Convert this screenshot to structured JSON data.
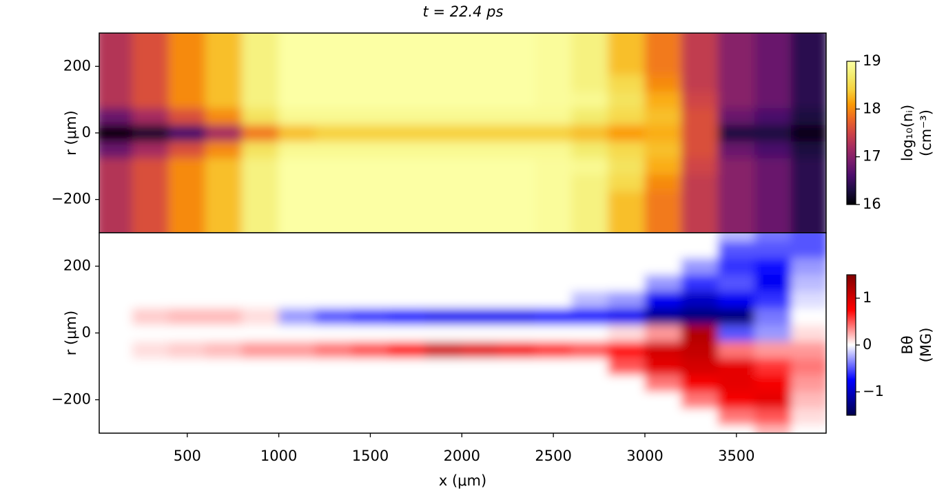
{
  "chart_data": [
    {
      "type": "heatmap",
      "title": "t = 22.4 ps",
      "ylabel": "r (μm)",
      "colormap": "inferno",
      "xlim": [
        19,
        3990
      ],
      "ylim": [
        -300,
        300
      ],
      "yticks": [
        {
          "value": -200,
          "label": "−200"
        },
        0,
        200
      ],
      "x": [
        100,
        300,
        500,
        700,
        900,
        1100,
        1300,
        1500,
        1700,
        1900,
        2100,
        2300,
        2500,
        2700,
        2900,
        3100,
        3300,
        3500,
        3700,
        3900
      ],
      "y": [
        -300,
        -250,
        -200,
        -150,
        -100,
        -50,
        0,
        50,
        100,
        150,
        200,
        250,
        300
      ],
      "z": [
        [
          17.3,
          17.3,
          17.3,
          17.3,
          17.3,
          16.8,
          16.0,
          16.8,
          17.3,
          17.3,
          17.3,
          17.3,
          17.3
        ],
        [
          17.6,
          17.6,
          17.6,
          17.6,
          17.6,
          17.2,
          16.2,
          17.2,
          17.6,
          17.6,
          17.6,
          17.6,
          17.6
        ],
        [
          18.0,
          18.0,
          18.0,
          18.0,
          18.0,
          17.6,
          16.6,
          17.6,
          18.0,
          18.0,
          18.0,
          18.0,
          18.0
        ],
        [
          18.3,
          18.3,
          18.3,
          18.3,
          18.3,
          18.0,
          17.2,
          18.0,
          18.3,
          18.3,
          18.3,
          18.3,
          18.3
        ],
        [
          18.8,
          18.8,
          18.8,
          18.8,
          18.8,
          18.6,
          17.9,
          18.6,
          18.8,
          18.8,
          18.8,
          18.8,
          18.8
        ],
        [
          19,
          19,
          19,
          19,
          19,
          18.9,
          18.3,
          18.9,
          19,
          19,
          19,
          19,
          19
        ],
        [
          19,
          19,
          19,
          19,
          19,
          18.9,
          18.4,
          18.9,
          19,
          19,
          19,
          19,
          19
        ],
        [
          19,
          19,
          19,
          19,
          19,
          18.9,
          18.4,
          18.9,
          19,
          19,
          19,
          19,
          19
        ],
        [
          19,
          19,
          19,
          19,
          19,
          18.9,
          18.4,
          18.9,
          19,
          19,
          19,
          19,
          19
        ],
        [
          19,
          19,
          19,
          19,
          19,
          18.9,
          18.4,
          18.9,
          19,
          19,
          19,
          19,
          19
        ],
        [
          19,
          19,
          19,
          19,
          19,
          18.9,
          18.4,
          18.9,
          19,
          19,
          19,
          19,
          19
        ],
        [
          19,
          19,
          19,
          19,
          19,
          18.9,
          18.4,
          18.9,
          19,
          19,
          19,
          19,
          19
        ],
        [
          18.95,
          18.95,
          18.95,
          18.95,
          18.95,
          18.9,
          18.4,
          18.9,
          18.95,
          18.95,
          18.95,
          18.95,
          18.95
        ],
        [
          18.8,
          18.8,
          18.8,
          18.8,
          18.9,
          18.7,
          18.3,
          18.7,
          18.9,
          18.8,
          18.8,
          18.8,
          18.8
        ],
        [
          18.3,
          18.3,
          18.3,
          18.5,
          18.6,
          18.5,
          18.1,
          18.5,
          18.6,
          18.5,
          18.3,
          18.3,
          18.3
        ],
        [
          17.9,
          17.9,
          17.9,
          18.0,
          18.2,
          18.3,
          18.2,
          18.3,
          18.2,
          18.0,
          17.9,
          17.9,
          17.9
        ],
        [
          17.4,
          17.4,
          17.4,
          17.4,
          17.5,
          17.6,
          17.6,
          17.6,
          17.5,
          17.4,
          17.4,
          17.4,
          17.4
        ],
        [
          17.0,
          17.0,
          17.0,
          17.0,
          17.0,
          16.8,
          16.3,
          16.8,
          17.0,
          17.0,
          17.0,
          17.0,
          17.0
        ],
        [
          16.8,
          16.8,
          16.8,
          16.8,
          16.8,
          16.6,
          16.3,
          16.6,
          16.8,
          16.8,
          16.8,
          16.8,
          16.8
        ],
        [
          16.4,
          16.4,
          16.4,
          16.4,
          16.4,
          16.3,
          16.1,
          16.3,
          16.4,
          16.4,
          16.4,
          16.4,
          16.4
        ]
      ],
      "colorbar": {
        "label": [
          "log₁₀(nᵢ)",
          "(cm⁻³)"
        ],
        "clim": [
          16,
          19
        ],
        "ticks": [
          16,
          17,
          18,
          19
        ]
      }
    },
    {
      "type": "heatmap",
      "ylabel": "r (μm)",
      "xlabel": "x (μm)",
      "colormap": "seismic",
      "xlim": [
        19,
        3990
      ],
      "ylim": [
        -300,
        300
      ],
      "xticks": [
        500,
        1000,
        1500,
        2000,
        2500,
        3000,
        3500
      ],
      "yticks": [
        {
          "value": -200,
          "label": "−200"
        },
        0,
        200
      ],
      "x": [
        100,
        300,
        500,
        700,
        900,
        1100,
        1300,
        1500,
        1700,
        1900,
        2100,
        2300,
        2500,
        2700,
        2900,
        3100,
        3300,
        3500,
        3700,
        3900
      ],
      "y": [
        -300,
        -250,
        -200,
        -150,
        -100,
        -50,
        0,
        50,
        100,
        150,
        200,
        250,
        300
      ],
      "z": [
        [
          0,
          0,
          0,
          0,
          0,
          0,
          0,
          0,
          0,
          0,
          0,
          0,
          0
        ],
        [
          0,
          0,
          0,
          0,
          0,
          0.1,
          0,
          0.15,
          0,
          0,
          0,
          0,
          0
        ],
        [
          0,
          0,
          0,
          0,
          0,
          0.15,
          0,
          0.2,
          0,
          0,
          0,
          0,
          0
        ],
        [
          0,
          0,
          0,
          0,
          0,
          0.2,
          0,
          0.2,
          0,
          0,
          0,
          0,
          0
        ],
        [
          0,
          0,
          0,
          0,
          0,
          0.3,
          0,
          0.1,
          0,
          0,
          0,
          0,
          0
        ],
        [
          0,
          0,
          0,
          0,
          0,
          0.3,
          0,
          -0.3,
          0,
          0,
          0,
          0,
          0
        ],
        [
          0,
          0,
          0,
          0,
          0,
          0.4,
          0,
          -0.5,
          0,
          0,
          0,
          0,
          0
        ],
        [
          0,
          0,
          0,
          0,
          0,
          0.5,
          0,
          -0.6,
          0,
          0,
          0,
          0,
          0
        ],
        [
          0,
          0,
          0,
          0,
          0,
          0.7,
          0,
          -0.7,
          0,
          0,
          0,
          0,
          0
        ],
        [
          0,
          0,
          0,
          0,
          0,
          1.0,
          0,
          -0.8,
          0,
          0,
          0,
          0,
          0
        ],
        [
          0,
          0,
          0,
          0,
          0,
          0.9,
          0,
          -0.8,
          0,
          0,
          0,
          0,
          0
        ],
        [
          0,
          0,
          0,
          0,
          0,
          0.8,
          0,
          -0.8,
          0,
          0,
          0,
          0,
          0
        ],
        [
          0,
          0,
          0,
          0,
          0,
          0.6,
          0,
          -0.7,
          0,
          0,
          0,
          0,
          0
        ],
        [
          0,
          0,
          0,
          0,
          0,
          0.5,
          0,
          -0.7,
          -0.2,
          0,
          0,
          0,
          0
        ],
        [
          0,
          0,
          0,
          0,
          0.5,
          0.7,
          0.1,
          -0.8,
          -0.3,
          0,
          0,
          0,
          0
        ],
        [
          0,
          0,
          0,
          0.4,
          0.9,
          1.0,
          0.3,
          -1.2,
          -0.8,
          -0.3,
          0,
          0,
          0
        ],
        [
          0,
          0,
          0.4,
          0.8,
          1.0,
          1.1,
          1.2,
          -1.3,
          -1.0,
          -0.6,
          -0.3,
          0,
          0
        ],
        [
          0,
          0.4,
          0.8,
          0.9,
          0.9,
          0.4,
          -0.5,
          -1.3,
          -0.8,
          -0.5,
          -0.6,
          -0.5,
          -0.2
        ],
        [
          0.2,
          0.5,
          0.9,
          0.8,
          0.6,
          0.3,
          -0.3,
          -0.4,
          -0.6,
          -0.8,
          -0.7,
          -0.5,
          -0.4
        ],
        [
          0,
          0.1,
          0.2,
          0.3,
          0.4,
          0.3,
          0.1,
          0,
          -0.1,
          -0.2,
          -0.3,
          -0.5,
          -0.5
        ]
      ],
      "colorbar": {
        "label": [
          "Bθ",
          "(MG)"
        ],
        "clim": [
          -1.5,
          1.5
        ],
        "ticks": [
          {
            "value": -1,
            "label": "−1"
          },
          0,
          1
        ]
      }
    }
  ]
}
